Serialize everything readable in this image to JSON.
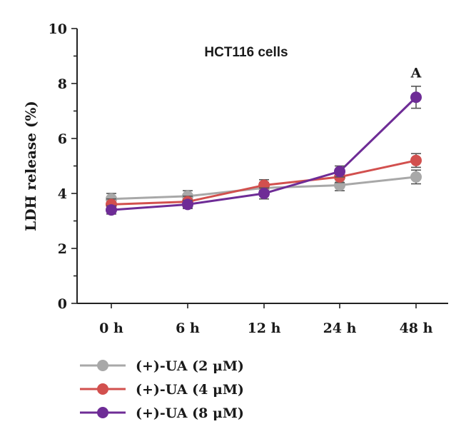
{
  "chart_data": {
    "type": "line",
    "title": "HCT116 cells",
    "xlabel": "",
    "ylabel": "LDH release (%)",
    "categories": [
      "0 h",
      "6 h",
      "12 h",
      "24 h",
      "48 h"
    ],
    "ylim": [
      0,
      10
    ],
    "yticks": [
      0,
      2,
      4,
      6,
      8,
      10
    ],
    "grid": false,
    "legend_position": "bottom-left",
    "series": [
      {
        "name": "(+)-UA (2 μM)",
        "color": "#a8a8a8",
        "values": [
          3.8,
          3.9,
          4.2,
          4.3,
          4.6
        ],
        "errors": [
          0.2,
          0.2,
          0.2,
          0.2,
          0.25
        ]
      },
      {
        "name": "(+)-UA (4 μM)",
        "color": "#d2504e",
        "values": [
          3.6,
          3.7,
          4.3,
          4.6,
          5.2
        ],
        "errors": [
          0.2,
          0.2,
          0.2,
          0.2,
          0.25
        ]
      },
      {
        "name": "(+)-UA (8 μM)",
        "color": "#6e2c96",
        "values": [
          3.4,
          3.6,
          4.0,
          4.8,
          7.5
        ],
        "errors": [
          0.15,
          0.15,
          0.2,
          0.2,
          0.4
        ]
      }
    ],
    "annotations": [
      {
        "text": "A",
        "category": "48 h",
        "y": 8.4
      }
    ]
  }
}
